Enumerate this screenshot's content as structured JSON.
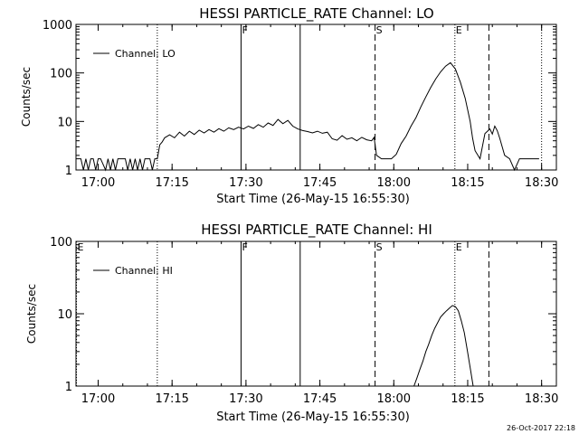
{
  "footer": {
    "timestamp": "26-Oct-2017 22:18"
  },
  "chart_data": [
    {
      "type": "line",
      "title": "HESSI PARTICLE_RATE Channel: LO",
      "xlabel": "Start Time (26-May-15 16:55:30)",
      "ylabel": "Counts/sec",
      "yscale": "log",
      "ylim": [
        1,
        1000
      ],
      "yticks": [
        1,
        10,
        100,
        1000
      ],
      "ytick_labels": [
        "1",
        "10",
        "100",
        "1000"
      ],
      "x_unit": "minutes after 16:55:30",
      "xlim": [
        0,
        97.5
      ],
      "xticks": [
        4.5,
        19.5,
        34.5,
        49.5,
        64.5,
        79.5,
        94.5
      ],
      "xtick_labels": [
        "17:00",
        "17:15",
        "17:30",
        "17:45",
        "18:00",
        "18:15",
        "18:30"
      ],
      "legend": {
        "label": "Channel: LO",
        "position": "top-left"
      },
      "markers": [
        {
          "x": 16.5,
          "style": "dotted",
          "label": ""
        },
        {
          "x": 33.5,
          "style": "solid",
          "label": "F"
        },
        {
          "x": 45.5,
          "style": "solid",
          "label": ""
        },
        {
          "x": 60.7,
          "style": "dashed",
          "label": "S"
        },
        {
          "x": 76.9,
          "style": "dotted",
          "label": "E"
        },
        {
          "x": 83.8,
          "style": "dashed",
          "label": ""
        },
        {
          "x": 94.5,
          "style": "dotted",
          "label": ""
        }
      ],
      "series": [
        {
          "name": "Channel: LO",
          "x": [
            0,
            1,
            1.5,
            2,
            2.5,
            3,
            3.5,
            4,
            4.5,
            5,
            6,
            6.5,
            7,
            7.5,
            8,
            8.5,
            9,
            10,
            10.5,
            11,
            11.5,
            12,
            12.5,
            13,
            13.5,
            14,
            14.5,
            15,
            15.5,
            16,
            16.5,
            17,
            17.5,
            18,
            19,
            20,
            21,
            22,
            23,
            24,
            25,
            26,
            27,
            28,
            29,
            30,
            31,
            32,
            33,
            34,
            35,
            36,
            37,
            38,
            39,
            40,
            41,
            42,
            43,
            44,
            45,
            46,
            47,
            48,
            49,
            50,
            51,
            52,
            53,
            54,
            55,
            56,
            57,
            58,
            59,
            60,
            60.5,
            61,
            62,
            63,
            64,
            65,
            66,
            67,
            68,
            69,
            70,
            71,
            72,
            73,
            74,
            75,
            76,
            77,
            78,
            79,
            80,
            80.5,
            81,
            82,
            83,
            84,
            84.5,
            85,
            85.5,
            86,
            86.5,
            87,
            88,
            89,
            90,
            91,
            92,
            93,
            94
          ],
          "y": [
            1.7,
            1.7,
            1,
            1.7,
            1,
            1.7,
            1.7,
            1,
            1.7,
            1.7,
            1,
            1.7,
            1,
            1.7,
            1,
            1.7,
            1.7,
            1.7,
            1,
            1.7,
            1,
            1.7,
            1,
            1.7,
            1,
            1.7,
            1.7,
            1.7,
            1,
            1.7,
            1.7,
            3.3,
            3.8,
            4.6,
            5.3,
            4.6,
            6.0,
            5.0,
            6.3,
            5.4,
            6.6,
            5.8,
            6.8,
            6.0,
            7.1,
            6.3,
            7.4,
            6.8,
            7.6,
            7.0,
            8.0,
            7.2,
            8.6,
            7.6,
            9.3,
            8.3,
            11,
            9.0,
            10.5,
            8.0,
            7.0,
            6.5,
            6.2,
            5.8,
            6.3,
            5.7,
            6.0,
            4.4,
            4.1,
            5.1,
            4.3,
            4.6,
            4.0,
            4.7,
            4.2,
            4.0,
            4.7,
            2.0,
            1.7,
            1.7,
            1.7,
            2.1,
            3.5,
            5.0,
            8,
            12,
            20,
            32,
            50,
            75,
            105,
            138,
            163,
            120,
            65,
            30,
            10,
            4.5,
            2.5,
            1.7,
            5.6,
            7.0,
            5.5,
            8.0,
            6.5,
            4.5,
            3.0,
            2.0,
            1.7,
            1.0,
            1.7,
            1.7,
            1.7,
            1.7,
            1.7
          ]
        }
      ]
    },
    {
      "type": "line",
      "title": "HESSI PARTICLE_RATE Channel: HI",
      "xlabel": "Start Time (26-May-15 16:55:30)",
      "ylabel": "Counts/sec",
      "yscale": "log",
      "ylim": [
        1,
        100
      ],
      "yticks": [
        1,
        10,
        100
      ],
      "ytick_labels": [
        "1",
        "10",
        "100"
      ],
      "x_unit": "minutes after 16:55:30",
      "xlim": [
        0,
        97.5
      ],
      "xticks": [
        4.5,
        19.5,
        34.5,
        49.5,
        64.5,
        79.5,
        94.5
      ],
      "xtick_labels": [
        "17:00",
        "17:15",
        "17:30",
        "17:45",
        "18:00",
        "18:15",
        "18:30"
      ],
      "legend": {
        "label": "Channel: HI",
        "position": "top-left"
      },
      "markers": [
        {
          "x": 0.1,
          "style": "dotted",
          "label": "E"
        },
        {
          "x": 16.5,
          "style": "dotted",
          "label": ""
        },
        {
          "x": 33.5,
          "style": "solid",
          "label": "F"
        },
        {
          "x": 45.5,
          "style": "solid",
          "label": ""
        },
        {
          "x": 60.7,
          "style": "dashed",
          "label": "S"
        },
        {
          "x": 76.9,
          "style": "dotted",
          "label": "E"
        },
        {
          "x": 83.8,
          "style": "dashed",
          "label": ""
        }
      ],
      "series": [
        {
          "name": "Channel: HI",
          "x": [
            68.6,
            69.2,
            69.8,
            70.4,
            71.0,
            71.6,
            72.2,
            72.8,
            73.4,
            74.0,
            74.6,
            75.2,
            75.8,
            76.4,
            77.0,
            77.6,
            78.2,
            78.8,
            79.4,
            80.0,
            80.6
          ],
          "y": [
            1,
            1.3,
            1.7,
            2.2,
            3.0,
            3.8,
            5.0,
            6.3,
            7.5,
            9.0,
            10,
            11,
            12,
            13,
            12.5,
            11,
            8,
            5.5,
            3.2,
            1.8,
            1
          ]
        }
      ]
    }
  ]
}
